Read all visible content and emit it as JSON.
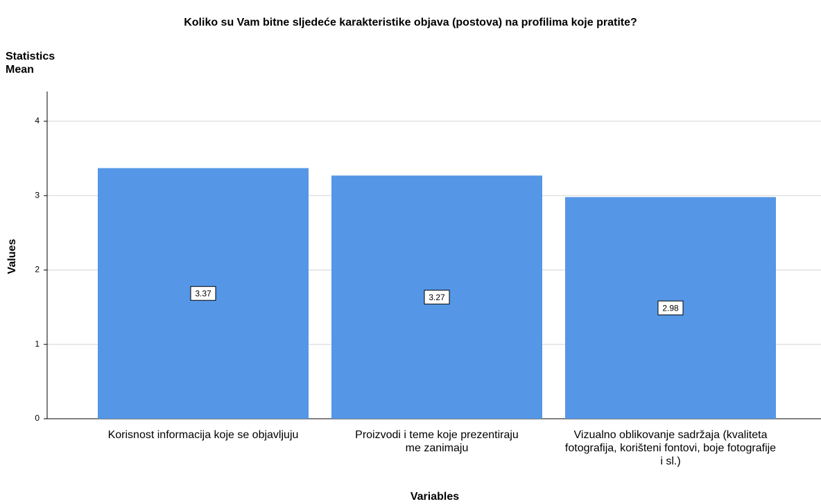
{
  "chart_data": {
    "type": "bar",
    "title": "Koliko su Vam bitne sljedeće karakteristike objava (postova) na profilima koje pratite?",
    "subtitle_lines": [
      "Statistics",
      "Mean"
    ],
    "x_label": "Variables",
    "y_label": "Values",
    "categories": [
      "Korisnost informacija koje se objavljuju",
      "Proizvodi i teme koje prezentiraju me zanimaju",
      "Vizualno oblikovanje sadržaja (kvaliteta fotografija, korišteni fontovi, boje fotografije i sl.)"
    ],
    "values": [
      3.37,
      3.27,
      2.98
    ],
    "color": "#5596e6",
    "ylim": [
      0,
      4.4
    ],
    "yticks": [
      0,
      1,
      2,
      3,
      4
    ],
    "grid": true
  }
}
